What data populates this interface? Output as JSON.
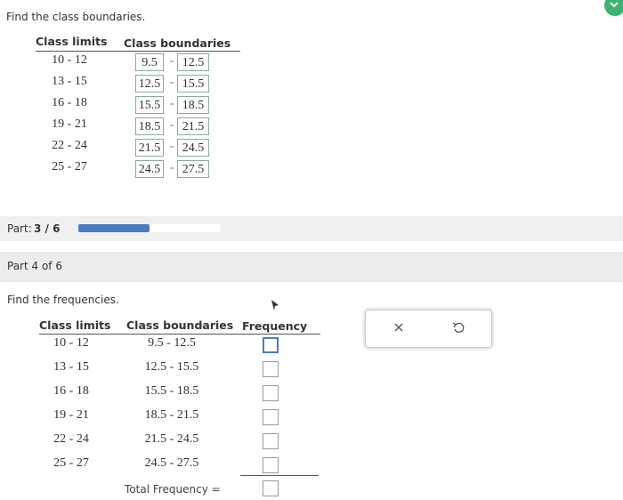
{
  "part3": {
    "prompt": "Find the class boundaries.",
    "headers": [
      "Class limits",
      "Class boundaries"
    ],
    "separator": "-",
    "rows": [
      [
        "10 - 12",
        "9.5",
        "12.5"
      ],
      [
        "13 - 15",
        "12.5",
        "15.5"
      ],
      [
        "16 - 18",
        "15.5",
        "18.5"
      ],
      [
        "19 - 21",
        "18.5",
        "21.5"
      ],
      [
        "22 - 24",
        "21.5",
        "24.5"
      ],
      [
        "25 - 27",
        "24.5",
        "27.5"
      ]
    ]
  },
  "progress": {
    "label": "Part:",
    "current": 3,
    "separator": "/",
    "total": 6
  },
  "part4": {
    "heading": "Part 4 of 6",
    "prompt": "Find the frequencies.",
    "headers": [
      "Class limits",
      "Class boundaries",
      "Frequency"
    ],
    "rows": [
      [
        "10 - 12",
        "9.5 - 12.5"
      ],
      [
        "13 - 15",
        "12.5 - 15.5"
      ],
      [
        "16 - 18",
        "15.5 - 18.5"
      ],
      [
        "19 - 21",
        "18.5 - 21.5"
      ],
      [
        "22 - 24",
        "21.5 - 24.5"
      ],
      [
        "25 - 27",
        "24.5 - 27.5"
      ]
    ],
    "total_label": "Total Frequency ="
  }
}
